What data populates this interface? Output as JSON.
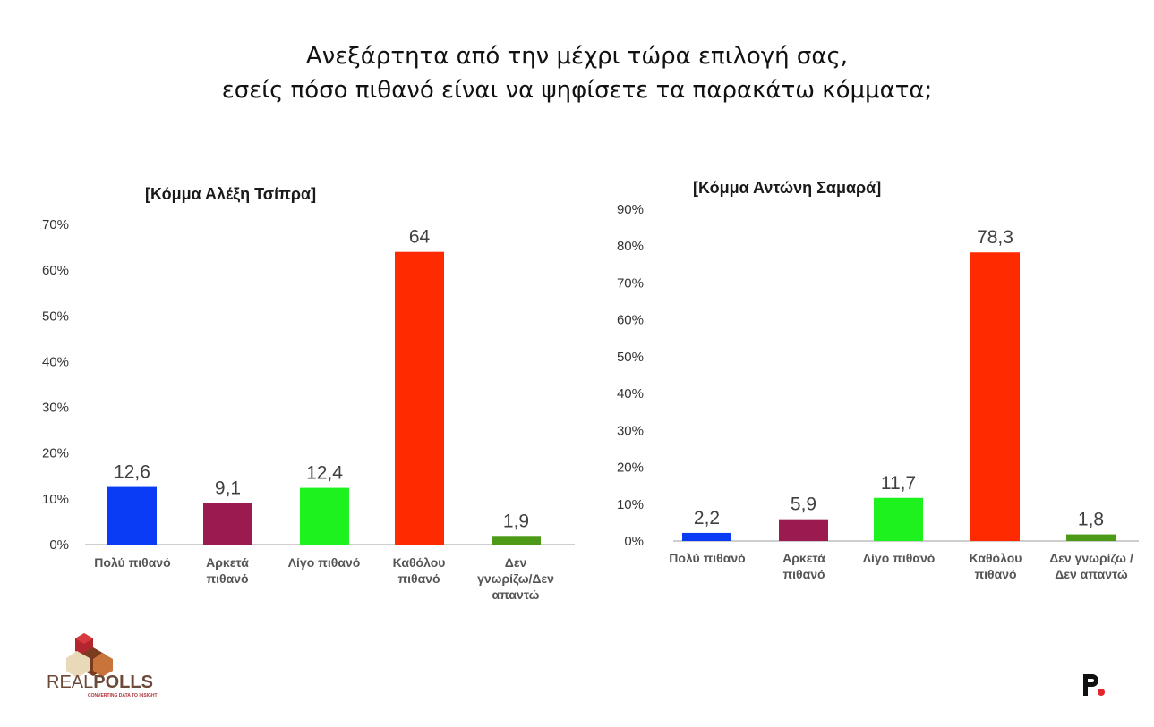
{
  "header": {
    "title_line1": "Ανεξάρτητα από την μέχρι τώρα επιλογή σας,",
    "title_line2": "εσείς πόσο πιθανό είναι να ψηφίσετε τα παρακάτω κόμματα;"
  },
  "colors": {
    "blue": "#0a3cf5",
    "purple": "#9b1b50",
    "green": "#1ef21e",
    "red": "#ff2a00",
    "olive": "#4c9a18"
  },
  "chart_data": [
    {
      "type": "bar",
      "title": "[Κόμμα Αλέξη Τσίπρα]",
      "categories": [
        [
          "Πολύ πιθανό"
        ],
        [
          "Αρκετά",
          "πιθανό"
        ],
        [
          "Λίγο πιθανό"
        ],
        [
          "Καθόλου",
          "πιθανό"
        ],
        [
          "Δεν",
          "γνωρίζω/Δεν",
          "απαντώ"
        ]
      ],
      "values": [
        12.6,
        9.1,
        12.4,
        64,
        1.9
      ],
      "value_labels": [
        "12,6",
        "9,1",
        "12,4",
        "64",
        "1,9"
      ],
      "bar_colors": [
        "#0a3cf5",
        "#9b1b50",
        "#1ef21e",
        "#ff2a00",
        "#4c9a18"
      ],
      "yticks": [
        "0%",
        "10%",
        "20%",
        "30%",
        "40%",
        "50%",
        "60%",
        "70%"
      ],
      "ylim": [
        0,
        70
      ],
      "xlabel": "",
      "ylabel": "",
      "grid": false,
      "legend": "none"
    },
    {
      "type": "bar",
      "title": "[Κόμμα Αντώνη Σαμαρά]",
      "categories": [
        [
          "Πολύ πιθανό"
        ],
        [
          "Αρκετά",
          "πιθανό"
        ],
        [
          "Λίγο πιθανό"
        ],
        [
          "Καθόλου",
          "πιθανό"
        ],
        [
          "Δεν γνωρίζω /",
          "Δεν απαντώ"
        ]
      ],
      "values": [
        2.2,
        5.9,
        11.7,
        78.3,
        1.8
      ],
      "value_labels": [
        "2,2",
        "5,9",
        "11,7",
        "78,3",
        "1,8"
      ],
      "bar_colors": [
        "#0a3cf5",
        "#9b1b50",
        "#1ef21e",
        "#ff2a00",
        "#4c9a18"
      ],
      "yticks": [
        "0%",
        "10%",
        "20%",
        "30%",
        "40%",
        "50%",
        "60%",
        "70%",
        "80%",
        "90%"
      ],
      "ylim": [
        0,
        90
      ],
      "xlabel": "",
      "ylabel": "",
      "grid": false,
      "legend": "none"
    }
  ],
  "logos": {
    "left_text_a": "REAL",
    "left_text_b": "POLLS",
    "left_tagline": "CONVERTING DATA TO INSIGHT",
    "right_icon": "p-dot-logo-icon"
  }
}
